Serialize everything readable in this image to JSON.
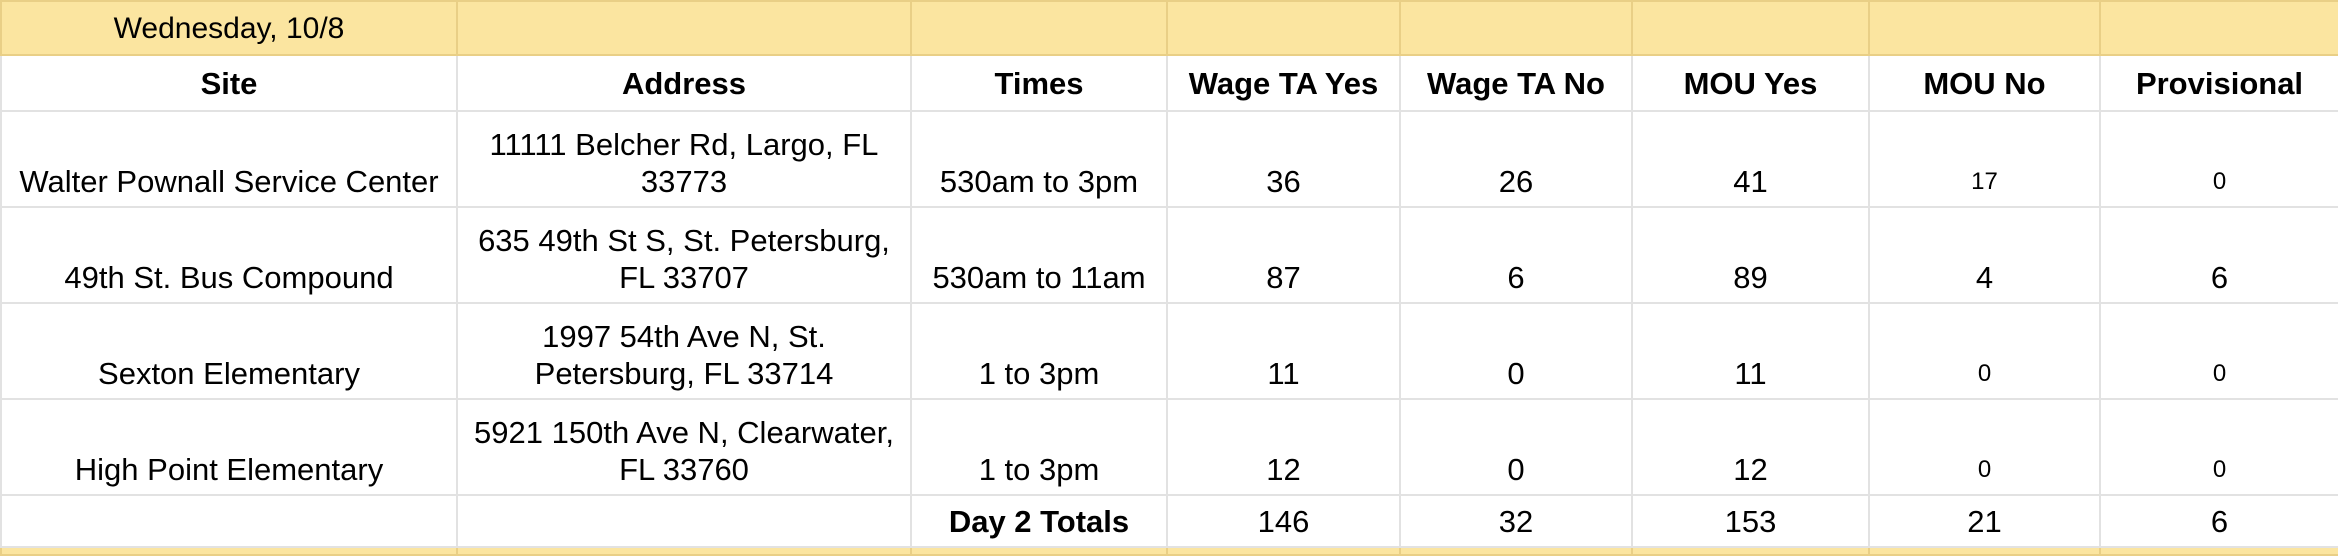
{
  "banner": {
    "date": "Wednesday, 10/8"
  },
  "columns": [
    "Site",
    "Address",
    "Times",
    "Wage TA Yes",
    "Wage TA No",
    "MOU Yes",
    "MOU No",
    "Provisional"
  ],
  "rows": [
    {
      "site": "Walter Pownall Service Center",
      "address": "11111 Belcher Rd, Largo, FL 33773",
      "times": "530am to 3pm",
      "wage_ta_yes": "36",
      "wage_ta_no": "26",
      "mou_yes": "41",
      "mou_no": "17",
      "provisional": "0"
    },
    {
      "site": "49th St. Bus Compound",
      "address": "635 49th St S, St. Petersburg, FL 33707",
      "times": "530am to 11am",
      "wage_ta_yes": "87",
      "wage_ta_no": "6",
      "mou_yes": "89",
      "mou_no": "4",
      "provisional": "6"
    },
    {
      "site": "Sexton Elementary",
      "address": "1997 54th Ave N, St. Petersburg, FL 33714",
      "times": "1 to 3pm",
      "wage_ta_yes": "11",
      "wage_ta_no": "0",
      "mou_yes": "11",
      "mou_no": "0",
      "provisional": "0"
    },
    {
      "site": "High Point Elementary",
      "address": "5921 150th Ave N, Clearwater, FL 33760",
      "times": "1 to 3pm",
      "wage_ta_yes": "12",
      "wage_ta_no": "0",
      "mou_yes": "12",
      "mou_no": "0",
      "provisional": "0"
    }
  ],
  "totals": {
    "label": "Day 2 Totals",
    "wage_ta_yes": "146",
    "wage_ta_no": "32",
    "mou_yes": "153",
    "mou_no": "21",
    "provisional": "6"
  },
  "colors": {
    "banner": "#fbe5a0",
    "grid": "#e2e2e2"
  }
}
